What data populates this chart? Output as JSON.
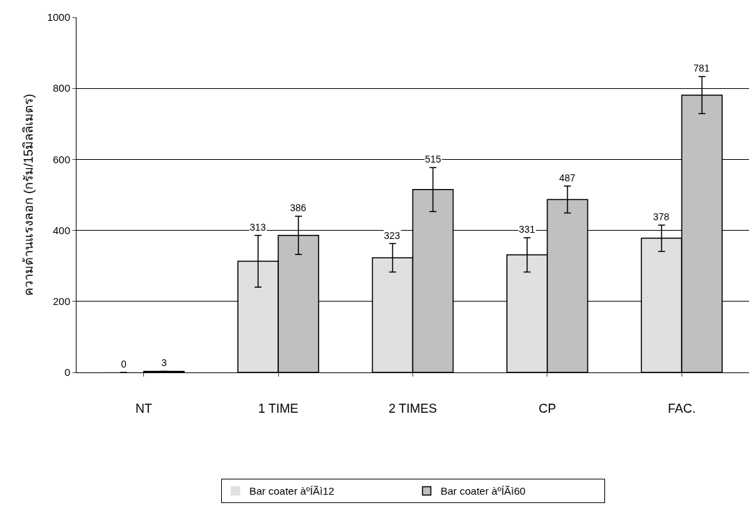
{
  "chart_data": {
    "type": "bar",
    "ylabel": "ความต้านแรงลอก (กรัม/15มิลลิเมตร)",
    "categories": [
      "NT",
      "1 TIME",
      "2 TIMES",
      "CP",
      "FAC."
    ],
    "series": [
      {
        "name": "Bar coater àºÍÃì12",
        "color": "#e0e0e0",
        "values": [
          0,
          313,
          323,
          331,
          378
        ],
        "errors": [
          null,
          73,
          40,
          48,
          37
        ]
      },
      {
        "name": "Bar coater àºÍÃì60",
        "color": "#c0c0c0",
        "values": [
          3,
          386,
          515,
          487,
          781
        ],
        "errors": [
          null,
          54,
          62,
          38,
          52
        ]
      }
    ],
    "ylim": [
      0,
      1000
    ],
    "yticks": [
      0,
      200,
      400,
      600,
      800,
      1000
    ],
    "grid": "y",
    "legend": "bottom",
    "data_labels": true
  }
}
